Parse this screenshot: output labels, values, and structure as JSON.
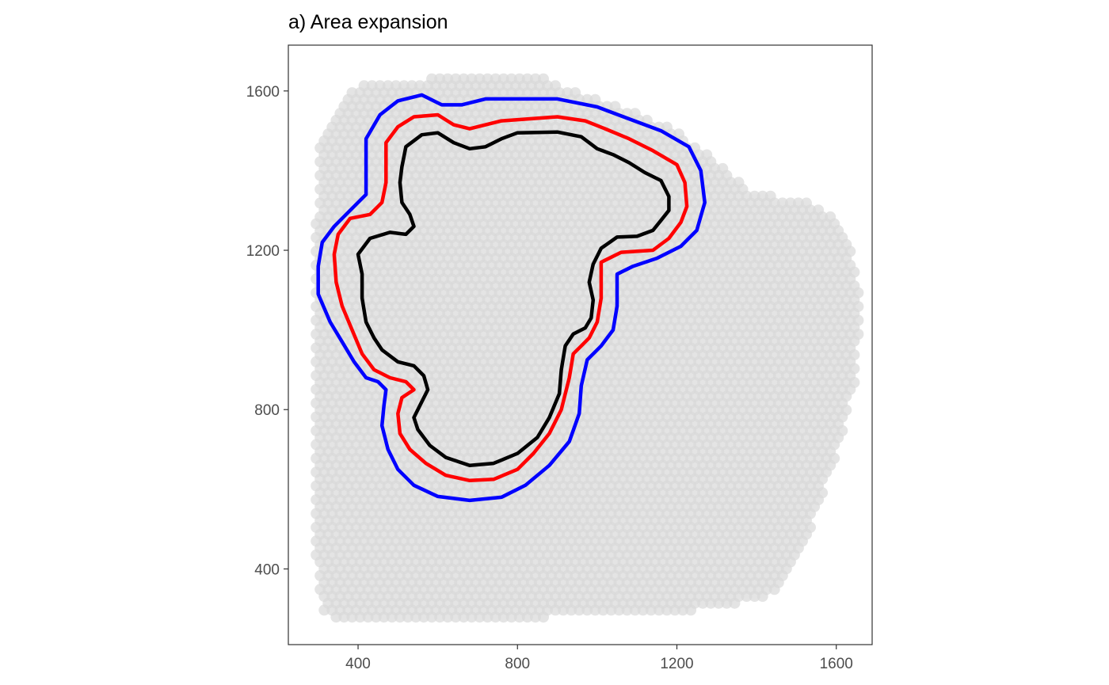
{
  "chart_data": {
    "type": "scatter",
    "title": "a) Area expansion",
    "xlabel": "",
    "ylabel": "",
    "xlim": [
      225,
      1690
    ],
    "ylim": [
      210,
      1715
    ],
    "x_ticks": [
      400,
      800,
      1200,
      1600
    ],
    "y_ticks": [
      400,
      800,
      1200,
      1600
    ],
    "x_tick_labels": [
      "400",
      "800",
      "1200",
      "1600"
    ],
    "y_tick_labels": [
      "400",
      "800",
      "1200",
      "1600"
    ],
    "grid": false,
    "legend": "none",
    "spots": {
      "description_of_tissue_outline": "hexagonal grid of spots",
      "color": "#d9d9d9",
      "alpha": 0.7,
      "spacing": 20,
      "outline": [
        [
          300,
          1480
        ],
        [
          340,
          1550
        ],
        [
          380,
          1600
        ],
        [
          420,
          1625
        ],
        [
          840,
          1640
        ],
        [
          920,
          1610
        ],
        [
          1000,
          1580
        ],
        [
          1100,
          1545
        ],
        [
          1200,
          1500
        ],
        [
          1300,
          1420
        ],
        [
          1400,
          1340
        ],
        [
          1520,
          1330
        ],
        [
          1600,
          1280
        ],
        [
          1640,
          1200
        ],
        [
          1660,
          1060
        ],
        [
          1650,
          880
        ],
        [
          1620,
          760
        ],
        [
          1560,
          560
        ],
        [
          1500,
          420
        ],
        [
          1460,
          340
        ],
        [
          1400,
          320
        ],
        [
          1200,
          290
        ],
        [
          900,
          280
        ],
        [
          600,
          270
        ],
        [
          320,
          280
        ],
        [
          300,
          340
        ],
        [
          290,
          500
        ],
        [
          290,
          900
        ],
        [
          290,
          1200
        ],
        [
          300,
          1400
        ]
      ]
    },
    "series": [
      {
        "color": "#000000",
        "values": [
          [
            520,
            1460
          ],
          [
            560,
            1490
          ],
          [
            600,
            1495
          ],
          [
            640,
            1470
          ],
          [
            680,
            1455
          ],
          [
            720,
            1460
          ],
          [
            760,
            1480
          ],
          [
            800,
            1495
          ],
          [
            900,
            1497
          ],
          [
            960,
            1485
          ],
          [
            1000,
            1455
          ],
          [
            1040,
            1440
          ],
          [
            1080,
            1420
          ],
          [
            1120,
            1395
          ],
          [
            1160,
            1375
          ],
          [
            1180,
            1335
          ],
          [
            1180,
            1300
          ],
          [
            1160,
            1275
          ],
          [
            1140,
            1250
          ],
          [
            1100,
            1235
          ],
          [
            1050,
            1233
          ],
          [
            1010,
            1205
          ],
          [
            990,
            1165
          ],
          [
            980,
            1120
          ],
          [
            990,
            1075
          ],
          [
            985,
            1030
          ],
          [
            970,
            1005
          ],
          [
            940,
            990
          ],
          [
            920,
            960
          ],
          [
            910,
            900
          ],
          [
            905,
            840
          ],
          [
            880,
            780
          ],
          [
            850,
            730
          ],
          [
            800,
            690
          ],
          [
            740,
            665
          ],
          [
            680,
            660
          ],
          [
            620,
            680
          ],
          [
            580,
            710
          ],
          [
            550,
            750
          ],
          [
            540,
            780
          ],
          [
            560,
            820
          ],
          [
            575,
            850
          ],
          [
            565,
            885
          ],
          [
            540,
            910
          ],
          [
            500,
            920
          ],
          [
            460,
            950
          ],
          [
            440,
            980
          ],
          [
            420,
            1020
          ],
          [
            410,
            1080
          ],
          [
            410,
            1140
          ],
          [
            400,
            1190
          ],
          [
            430,
            1230
          ],
          [
            480,
            1245
          ],
          [
            520,
            1240
          ],
          [
            540,
            1260
          ],
          [
            530,
            1290
          ],
          [
            510,
            1320
          ],
          [
            505,
            1370
          ],
          [
            510,
            1410
          ]
        ]
      },
      {
        "color": "#ff0000",
        "values": [
          [
            470,
            1470
          ],
          [
            500,
            1510
          ],
          [
            540,
            1535
          ],
          [
            600,
            1540
          ],
          [
            640,
            1515
          ],
          [
            680,
            1505
          ],
          [
            720,
            1515
          ],
          [
            760,
            1525
          ],
          [
            900,
            1535
          ],
          [
            970,
            1525
          ],
          [
            1020,
            1505
          ],
          [
            1080,
            1480
          ],
          [
            1140,
            1450
          ],
          [
            1200,
            1415
          ],
          [
            1220,
            1370
          ],
          [
            1225,
            1310
          ],
          [
            1210,
            1270
          ],
          [
            1180,
            1230
          ],
          [
            1140,
            1200
          ],
          [
            1060,
            1195
          ],
          [
            1010,
            1170
          ],
          [
            1010,
            1080
          ],
          [
            1000,
            1020
          ],
          [
            980,
            980
          ],
          [
            960,
            960
          ],
          [
            940,
            940
          ],
          [
            930,
            880
          ],
          [
            910,
            800
          ],
          [
            880,
            740
          ],
          [
            840,
            690
          ],
          [
            800,
            650
          ],
          [
            740,
            625
          ],
          [
            680,
            622
          ],
          [
            620,
            635
          ],
          [
            570,
            665
          ],
          [
            530,
            700
          ],
          [
            505,
            740
          ],
          [
            500,
            790
          ],
          [
            510,
            830
          ],
          [
            540,
            850
          ],
          [
            520,
            870
          ],
          [
            480,
            880
          ],
          [
            440,
            900
          ],
          [
            410,
            940
          ],
          [
            385,
            1000
          ],
          [
            360,
            1060
          ],
          [
            345,
            1120
          ],
          [
            340,
            1190
          ],
          [
            350,
            1240
          ],
          [
            380,
            1280
          ],
          [
            430,
            1290
          ],
          [
            460,
            1320
          ],
          [
            470,
            1370
          ],
          [
            470,
            1420
          ]
        ]
      },
      {
        "color": "#0000ff",
        "values": [
          [
            420,
            1480
          ],
          [
            455,
            1540
          ],
          [
            500,
            1575
          ],
          [
            560,
            1590
          ],
          [
            610,
            1565
          ],
          [
            660,
            1565
          ],
          [
            720,
            1580
          ],
          [
            900,
            1580
          ],
          [
            1000,
            1560
          ],
          [
            1080,
            1530
          ],
          [
            1160,
            1500
          ],
          [
            1230,
            1460
          ],
          [
            1260,
            1400
          ],
          [
            1270,
            1320
          ],
          [
            1250,
            1250
          ],
          [
            1210,
            1210
          ],
          [
            1150,
            1180
          ],
          [
            1090,
            1160
          ],
          [
            1050,
            1140
          ],
          [
            1050,
            1060
          ],
          [
            1040,
            1000
          ],
          [
            1010,
            960
          ],
          [
            975,
            925
          ],
          [
            960,
            860
          ],
          [
            955,
            790
          ],
          [
            930,
            720
          ],
          [
            880,
            660
          ],
          [
            820,
            610
          ],
          [
            760,
            580
          ],
          [
            680,
            572
          ],
          [
            600,
            582
          ],
          [
            540,
            610
          ],
          [
            500,
            650
          ],
          [
            475,
            700
          ],
          [
            460,
            760
          ],
          [
            465,
            810
          ],
          [
            470,
            850
          ],
          [
            450,
            870
          ],
          [
            420,
            880
          ],
          [
            390,
            920
          ],
          [
            360,
            970
          ],
          [
            330,
            1020
          ],
          [
            300,
            1090
          ],
          [
            300,
            1160
          ],
          [
            310,
            1220
          ],
          [
            340,
            1260
          ],
          [
            380,
            1300
          ],
          [
            420,
            1340
          ],
          [
            420,
            1400
          ]
        ]
      }
    ]
  }
}
